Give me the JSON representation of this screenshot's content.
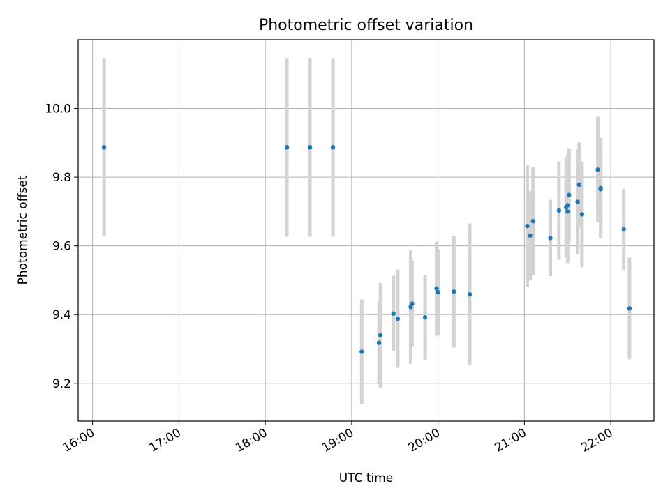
{
  "chart_data": {
    "type": "scatter",
    "title": "Photometric offset variation",
    "xlabel": "UTC time",
    "ylabel": "Photometric offset",
    "x_axis_kind": "time",
    "xlim": [
      "15:50",
      "22:30"
    ],
    "ylim": [
      9.09,
      10.2
    ],
    "xticks": [
      "16:00",
      "17:00",
      "18:00",
      "19:00",
      "20:00",
      "21:00",
      "22:00"
    ],
    "yticks": [
      9.2,
      9.4,
      9.6,
      9.8,
      10.0
    ],
    "ytick_labels": [
      "9.2",
      "9.4",
      "9.6",
      "9.8",
      "10.0"
    ],
    "grid": true,
    "colors": {
      "point": "#1f77b4",
      "errorbar": "#d3d3d3",
      "grid": "#b0b0b0"
    },
    "points": [
      {
        "x": "16:08",
        "y": 9.887,
        "err": 0.26
      },
      {
        "x": "18:15",
        "y": 9.887,
        "err": 0.26
      },
      {
        "x": "18:31",
        "y": 9.887,
        "err": 0.26
      },
      {
        "x": "18:47",
        "y": 9.887,
        "err": 0.26
      },
      {
        "x": "19:07",
        "y": 9.292,
        "err": 0.152
      },
      {
        "x": "19:19",
        "y": 9.318,
        "err": 0.12
      },
      {
        "x": "19:20",
        "y": 9.34,
        "err": 0.152
      },
      {
        "x": "19:29",
        "y": 9.403,
        "err": 0.11
      },
      {
        "x": "19:32",
        "y": 9.388,
        "err": 0.143
      },
      {
        "x": "19:41",
        "y": 9.422,
        "err": 0.165
      },
      {
        "x": "19:42",
        "y": 9.432,
        "err": 0.125
      },
      {
        "x": "19:51",
        "y": 9.392,
        "err": 0.123
      },
      {
        "x": "19:59",
        "y": 9.476,
        "err": 0.137
      },
      {
        "x": "20:00",
        "y": 9.465,
        "err": 0.126
      },
      {
        "x": "20:11",
        "y": 9.467,
        "err": 0.163
      },
      {
        "x": "20:22",
        "y": 9.459,
        "err": 0.206
      },
      {
        "x": "21:02",
        "y": 9.658,
        "err": 0.177
      },
      {
        "x": "21:04",
        "y": 9.63,
        "err": 0.13
      },
      {
        "x": "21:06",
        "y": 9.672,
        "err": 0.157
      },
      {
        "x": "21:18",
        "y": 9.623,
        "err": 0.111
      },
      {
        "x": "21:24",
        "y": 9.703,
        "err": 0.143
      },
      {
        "x": "21:29",
        "y": 9.712,
        "err": 0.145
      },
      {
        "x": "21:30",
        "y": 9.718,
        "err": 0.145
      },
      {
        "x": "21:30",
        "y": 9.7,
        "err": 0.15
      },
      {
        "x": "21:31",
        "y": 9.748,
        "err": 0.136
      },
      {
        "x": "21:37",
        "y": 9.728,
        "err": 0.153
      },
      {
        "x": "21:38",
        "y": 9.778,
        "err": 0.123
      },
      {
        "x": "21:40",
        "y": 9.692,
        "err": 0.154
      },
      {
        "x": "21:51",
        "y": 9.822,
        "err": 0.154
      },
      {
        "x": "21:53",
        "y": 9.768,
        "err": 0.146
      },
      {
        "x": "21:53",
        "y": 9.765,
        "err": 0.118
      },
      {
        "x": "22:09",
        "y": 9.648,
        "err": 0.118
      },
      {
        "x": "22:13",
        "y": 9.418,
        "err": 0.148
      }
    ]
  }
}
